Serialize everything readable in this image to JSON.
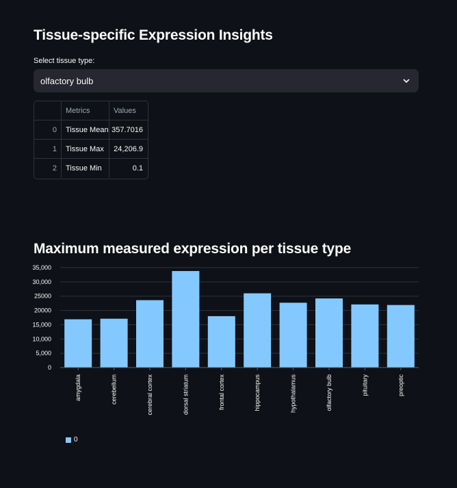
{
  "page": {
    "title": "Tissue-specific Expression Insights",
    "chart_title": "Maximum measured expression per tissue type"
  },
  "select": {
    "label": "Select tissue type:",
    "value": "olfactory bulb",
    "icon": "chevron-down-icon"
  },
  "table": {
    "columns": [
      "",
      "Metrics",
      "Values"
    ],
    "rows": [
      {
        "index": "0",
        "metric": "Tissue Mean",
        "value": "357.7016"
      },
      {
        "index": "1",
        "metric": "Tissue Max",
        "value": "24,206.9"
      },
      {
        "index": "2",
        "metric": "Tissue Min",
        "value": "0.1"
      }
    ]
  },
  "colors": {
    "background": "#0e1117",
    "bar": "#83c9ff",
    "grid": "#31333f"
  },
  "chart_data": {
    "type": "bar",
    "title": "Maximum measured expression per tissue type",
    "xlabel": "",
    "ylabel": "",
    "categories": [
      "amygdala",
      "cerebellum",
      "cerebral cortex",
      "dorsal striatum",
      "frontal cortex",
      "hippocampus",
      "hypothalamus",
      "olfactory bulb",
      "pituitary",
      "preoptic"
    ],
    "series": [
      {
        "name": "0",
        "values": [
          16900,
          17100,
          23600,
          33800,
          18000,
          26000,
          22700,
          24206.9,
          22100,
          21900
        ]
      }
    ],
    "yticks": [
      "0",
      "5,000",
      "10,000",
      "15,000",
      "20000",
      "25000",
      "30,000",
      "35,000"
    ],
    "ylim": [
      0,
      35000
    ],
    "grid": true,
    "legend": "bottom-left"
  }
}
